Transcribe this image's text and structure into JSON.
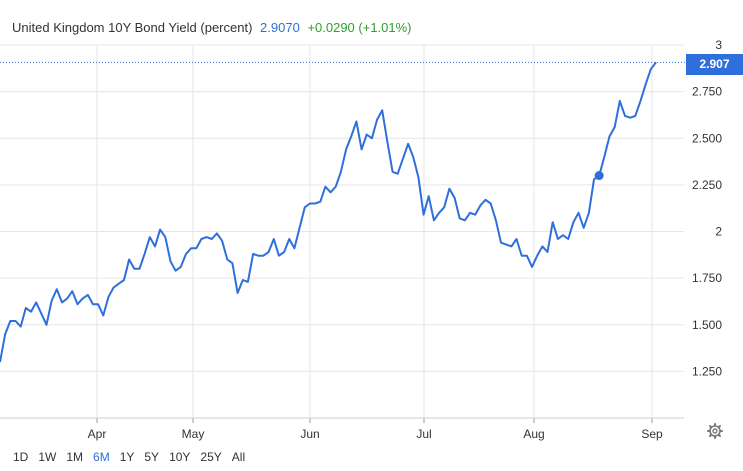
{
  "header": {
    "title": "United Kingdom 10Y Bond Yield (percent)",
    "last": "2.9070",
    "change": "+0.0290 (+1.01%)"
  },
  "last_badge": "2.907",
  "ranges": [
    {
      "label": "1D",
      "active": false
    },
    {
      "label": "1W",
      "active": false
    },
    {
      "label": "1M",
      "active": false
    },
    {
      "label": "6M",
      "active": true
    },
    {
      "label": "1Y",
      "active": false
    },
    {
      "label": "5Y",
      "active": false
    },
    {
      "label": "10Y",
      "active": false
    },
    {
      "label": "25Y",
      "active": false
    },
    {
      "label": "All",
      "active": false
    }
  ],
  "icons": {
    "settings": "gear-icon"
  },
  "colors": {
    "line": "#2f6fdc",
    "accent": "#2f6fdc",
    "positive": "#2da02d",
    "grid": "#e6e6e6"
  },
  "chart_data": {
    "type": "line",
    "title": "United Kingdom 10Y Bond Yield (percent)",
    "ylim": [
      1.0,
      3.0
    ],
    "yticks": [
      1.25,
      1.5,
      1.75,
      2,
      2.25,
      2.5,
      2.75,
      3
    ],
    "ytick_labels": [
      "1.250",
      "1.500",
      "1.750",
      "2",
      "2.250",
      "2.500",
      "2.750",
      "3"
    ],
    "xticks": [
      "Apr",
      "May",
      "Jun",
      "Jul",
      "Aug",
      "Sep"
    ],
    "grid": true,
    "last_value": 2.907,
    "highlight_index": 116,
    "series": [
      {
        "values": [
          1.3,
          1.45,
          1.52,
          1.52,
          1.49,
          1.59,
          1.57,
          1.62,
          1.56,
          1.5,
          1.63,
          1.69,
          1.62,
          1.64,
          1.68,
          1.61,
          1.64,
          1.66,
          1.61,
          1.61,
          1.55,
          1.65,
          1.7,
          1.72,
          1.74,
          1.85,
          1.8,
          1.8,
          1.88,
          1.97,
          1.92,
          2.01,
          1.97,
          1.84,
          1.79,
          1.81,
          1.88,
          1.91,
          1.91,
          1.96,
          1.97,
          1.96,
          1.99,
          1.95,
          1.85,
          1.83,
          1.67,
          1.74,
          1.73,
          1.88,
          1.87,
          1.87,
          1.89,
          1.96,
          1.87,
          1.89,
          1.96,
          1.91,
          2.02,
          2.13,
          2.15,
          2.15,
          2.16,
          2.24,
          2.21,
          2.24,
          2.32,
          2.44,
          2.51,
          2.59,
          2.44,
          2.52,
          2.5,
          2.6,
          2.65,
          2.48,
          2.32,
          2.31,
          2.39,
          2.47,
          2.4,
          2.29,
          2.09,
          2.19,
          2.06,
          2.1,
          2.13,
          2.23,
          2.18,
          2.07,
          2.06,
          2.1,
          2.09,
          2.14,
          2.17,
          2.15,
          2.06,
          1.94,
          1.93,
          1.92,
          1.96,
          1.87,
          1.87,
          1.81,
          1.87,
          1.92,
          1.89,
          2.05,
          1.96,
          1.98,
          1.96,
          2.05,
          2.1,
          2.02,
          2.1,
          2.28,
          2.3,
          2.4,
          2.51,
          2.56,
          2.7,
          2.62,
          2.61,
          2.62,
          2.7,
          2.79,
          2.87,
          2.907
        ]
      }
    ]
  }
}
